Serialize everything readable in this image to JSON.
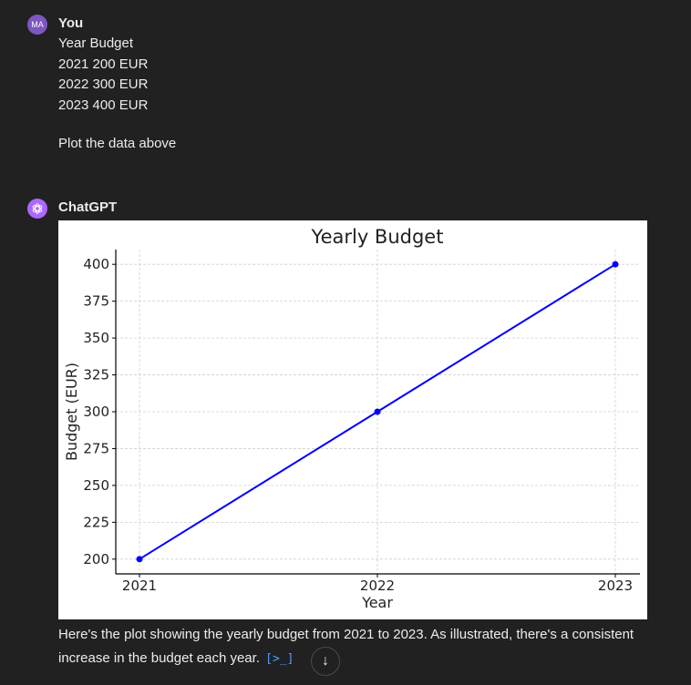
{
  "user": {
    "avatar_initials": "MA",
    "name": "You",
    "lines": [
      "Year Budget",
      "2021 200 EUR",
      "2022 300 EUR",
      "2023 400 EUR"
    ],
    "prompt": "Plot the data above"
  },
  "assistant": {
    "name": "ChatGPT",
    "response": "Here's the plot showing the yearly budget from 2021 to 2023. As illustrated, there's a consistent increase in the budget each year.",
    "code_button_icon": "code-interpreter-icon",
    "code_button_glyph": "[>_]"
  },
  "scroll_button_glyph": "↓",
  "colors": {
    "background": "#212121",
    "line": "#0000ff",
    "user_avatar": "#7e57c2",
    "gpt_avatar": "#ab68ff"
  },
  "chart_data": {
    "type": "line",
    "title": "Yearly Budget",
    "xlabel": "Year",
    "ylabel": "Budget (EUR)",
    "categories": [
      "2021",
      "2022",
      "2023"
    ],
    "series": [
      {
        "values": [
          200,
          300,
          400
        ]
      }
    ],
    "yticks": [
      200,
      225,
      250,
      275,
      300,
      325,
      350,
      375,
      400
    ],
    "ylim": [
      190,
      410
    ],
    "grid": true
  }
}
